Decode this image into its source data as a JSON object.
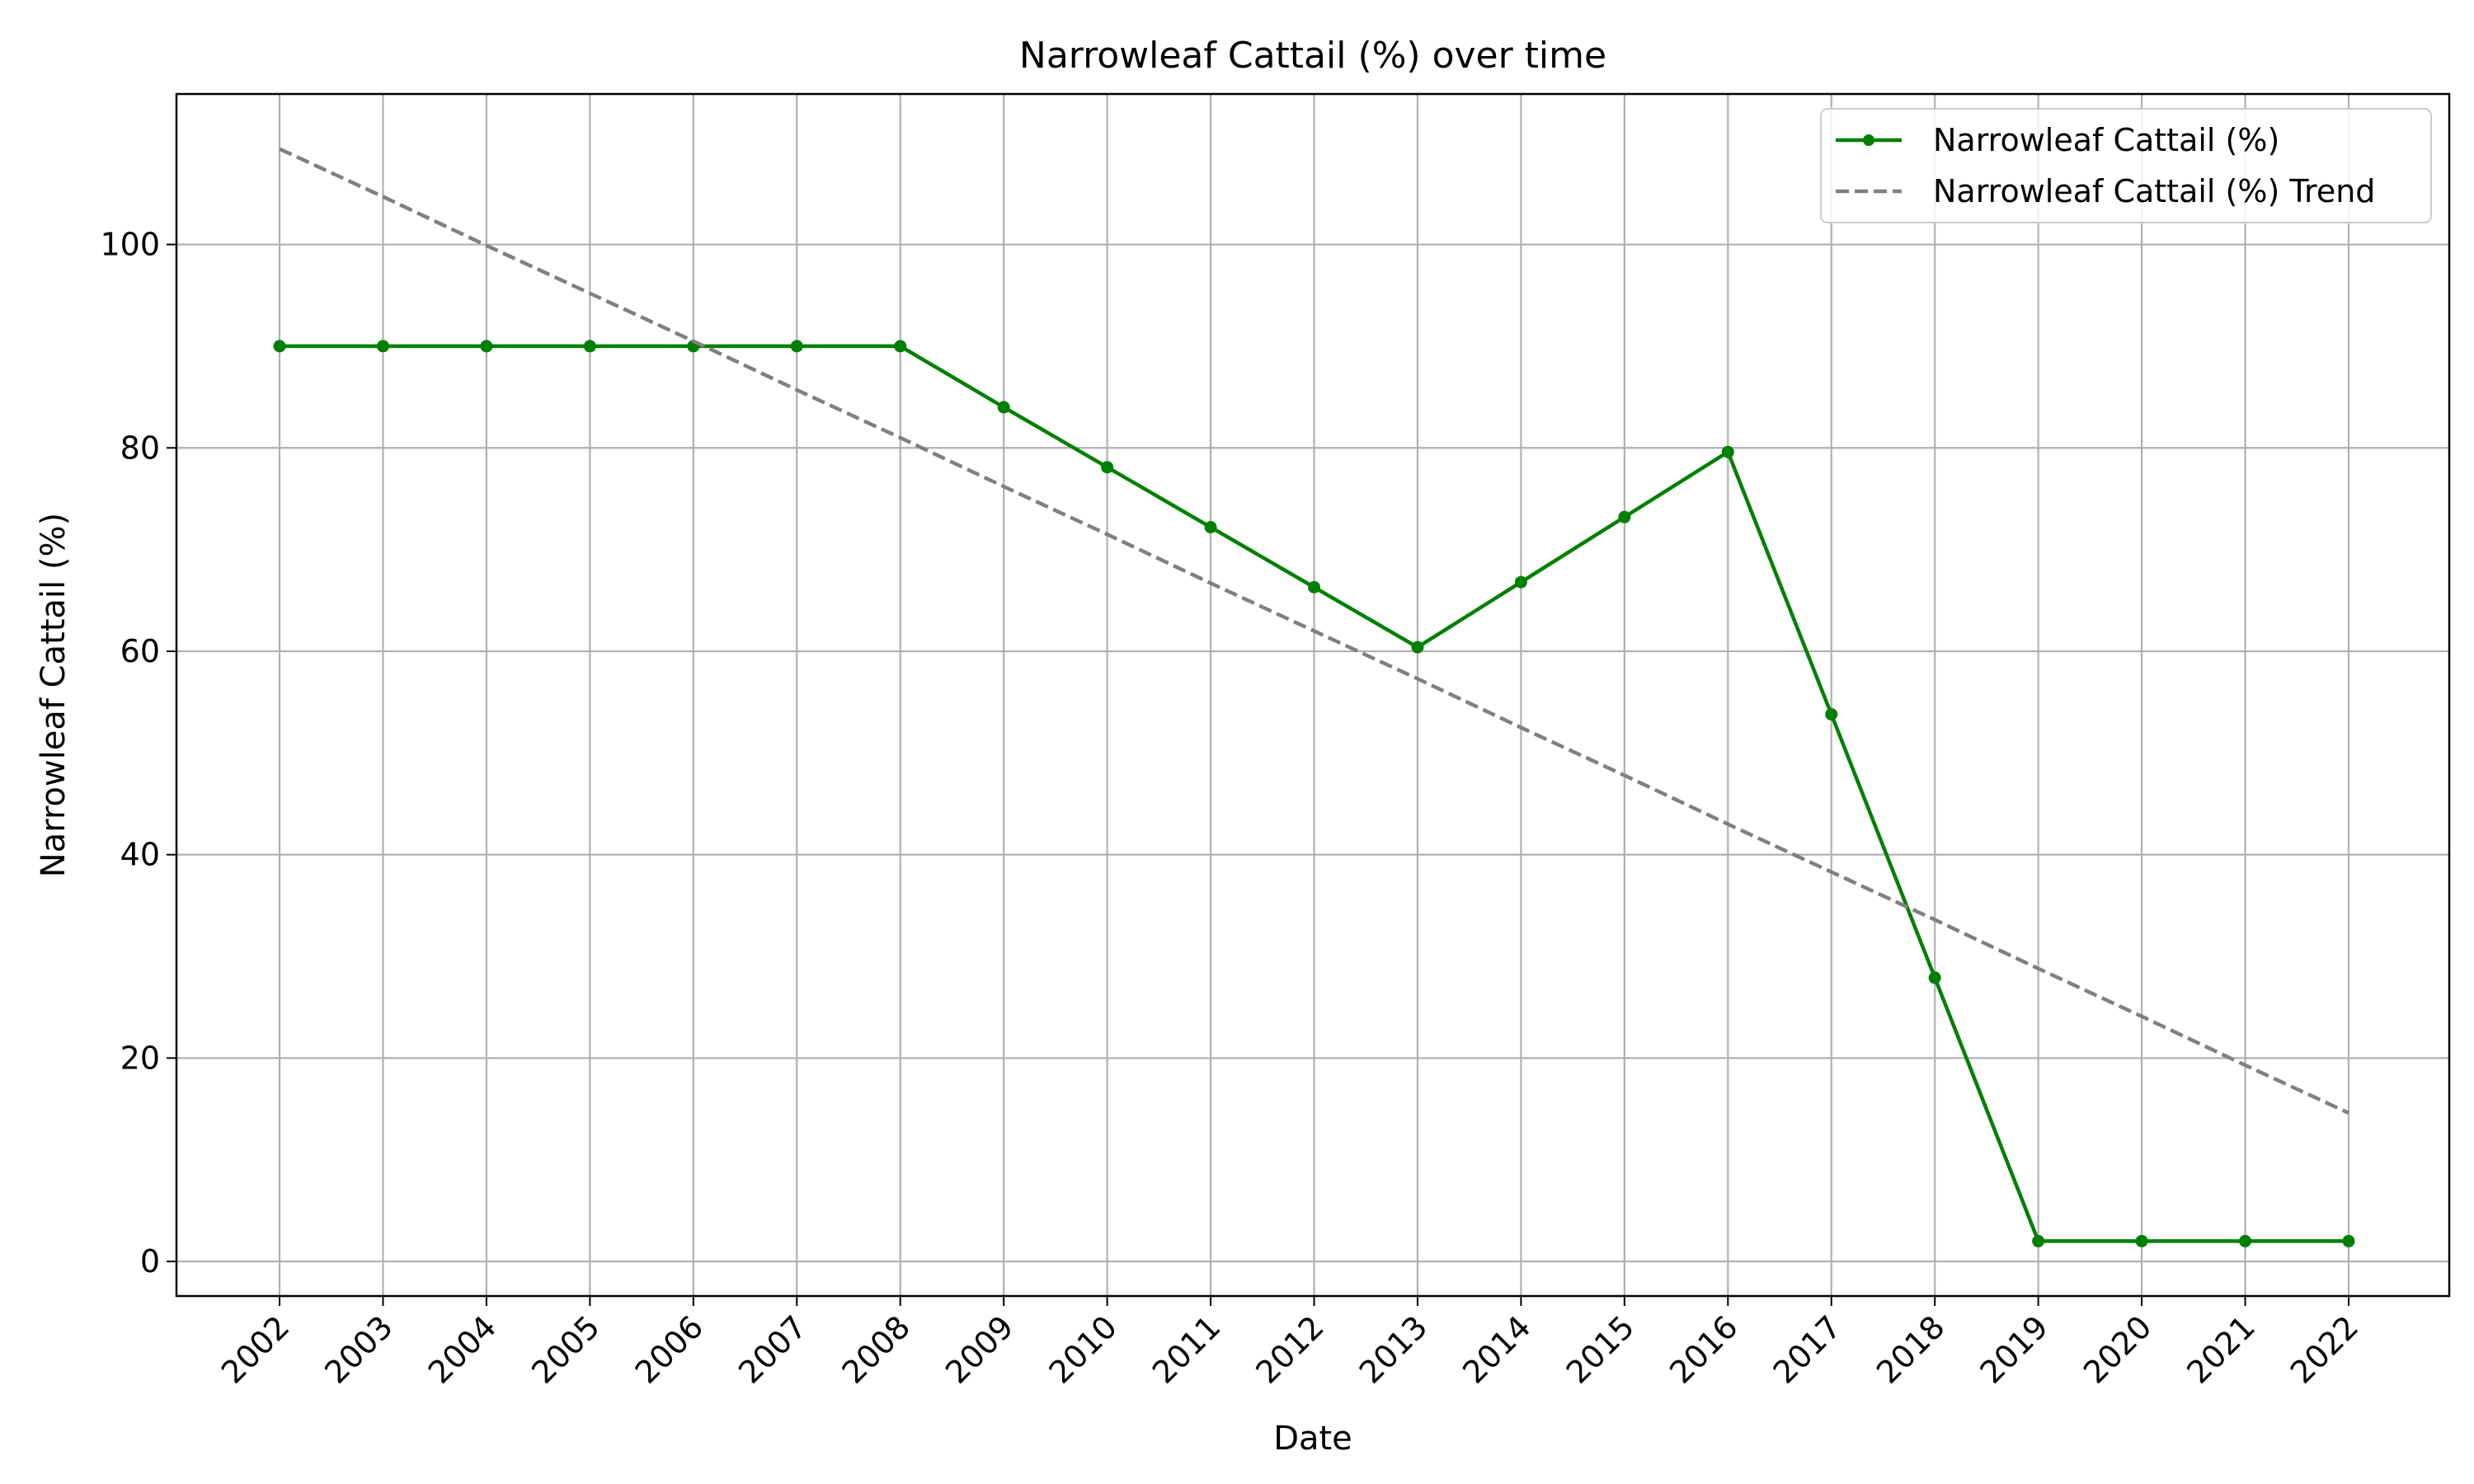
{
  "chart_data": {
    "type": "line",
    "title": "Narrowleaf Cattail (%) over time",
    "xlabel": "Date",
    "ylabel": "Narrowleaf Cattail (%)",
    "x": [
      "2002",
      "2003",
      "2004",
      "2005",
      "2006",
      "2007",
      "2008",
      "2009",
      "2010",
      "2011",
      "2012",
      "2013",
      "2014",
      "2015",
      "2016",
      "2017",
      "2018",
      "2019",
      "2020",
      "2021",
      "2022"
    ],
    "series": [
      {
        "name": "Narrowleaf Cattail (%)",
        "color": "#008000",
        "style": "solid",
        "markers": true,
        "values": [
          90,
          90,
          90,
          90,
          90,
          90,
          90,
          84,
          78.1,
          72.2,
          66.3,
          60.4,
          66.8,
          73.2,
          79.6,
          53.8,
          27.9,
          2,
          2,
          2,
          2
        ]
      },
      {
        "name": "Narrowleaf Cattail (%) Trend",
        "color": "#808080",
        "style": "dashed",
        "markers": false,
        "values": [
          109.4,
          104.7,
          99.9,
          95.2,
          90.5,
          85.7,
          81.0,
          76.2,
          71.5,
          66.7,
          62.0,
          57.3,
          52.5,
          47.8,
          43.0,
          38.3,
          33.6,
          28.8,
          24.1,
          19.3,
          14.6
        ]
      }
    ],
    "yticks": [
      0,
      20,
      40,
      60,
      80,
      100
    ],
    "ylim": [
      -3.4,
      114.8
    ],
    "grid": true,
    "legend": "top-right"
  }
}
